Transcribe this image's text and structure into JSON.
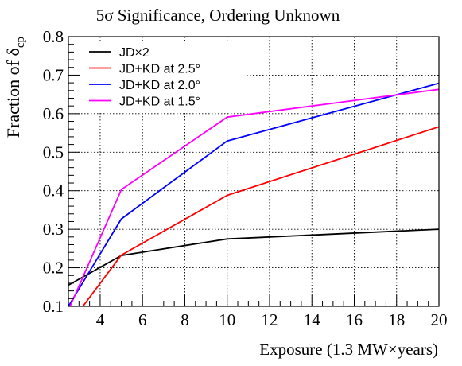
{
  "chart_data": {
    "type": "line",
    "title": "5σ Significance, Ordering Unknown",
    "xlabel": "Exposure (1.3 MW×years)",
    "ylabel_main": "Fraction of δ",
    "ylabel_sub": "cp",
    "xlim": [
      2.5,
      20
    ],
    "ylim": [
      0.1,
      0.8
    ],
    "x_ticks": [
      4,
      6,
      8,
      10,
      12,
      14,
      16,
      18,
      20
    ],
    "y_ticks": [
      0.1,
      0.2,
      0.3,
      0.4,
      0.5,
      0.6,
      0.7,
      0.8
    ],
    "grid": true,
    "legend_position": "top-left",
    "series": [
      {
        "name": "JD×2",
        "color": "#000000",
        "x": [
          2.5,
          5,
          10,
          20
        ],
        "values": [
          0.155,
          0.232,
          0.275,
          0.3
        ]
      },
      {
        "name": "JD+KD at 2.5°",
        "color": "#ff0000",
        "x": [
          2.5,
          5,
          10,
          20
        ],
        "values": [
          0.05,
          0.233,
          0.388,
          0.566
        ]
      },
      {
        "name": "JD+KD at 2.0°",
        "color": "#0000ff",
        "x": [
          2.5,
          5,
          10,
          20
        ],
        "values": [
          0.1,
          0.327,
          0.529,
          0.679
        ]
      },
      {
        "name": "JD+KD at 1.5°",
        "color": "#ff00ff",
        "x": [
          2.5,
          5,
          10,
          20
        ],
        "values": [
          0.09,
          0.403,
          0.591,
          0.663
        ]
      }
    ]
  }
}
